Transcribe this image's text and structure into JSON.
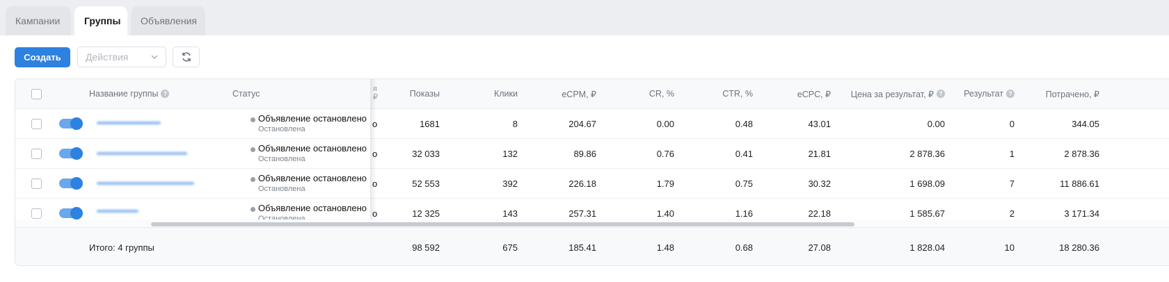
{
  "tabs": [
    {
      "label": "Кампании",
      "active": false
    },
    {
      "label": "Группы",
      "active": true
    },
    {
      "label": "Объявления",
      "active": false
    }
  ],
  "toolbar": {
    "create_label": "Создать",
    "actions_placeholder": "Действия"
  },
  "table": {
    "headers": {
      "name": "Название группы",
      "status": "Статус",
      "peek": "я\n₽",
      "impressions": "Показы",
      "clicks": "Клики",
      "ecpm": "eCPM, ₽",
      "cr": "CR, %",
      "ctr": "CTR, %",
      "ecpc": "eCPC, ₽",
      "cost_per_result": "Цена за результат, ₽",
      "result": "Результат",
      "spent": "Потрачено, ₽"
    },
    "rows": [
      {
        "status": "Объявление остановлено",
        "substatus": "Остановлена",
        "peek": "о",
        "impressions": "1681",
        "clicks": "8",
        "ecpm": "204.67",
        "cr": "0.00",
        "ctr": "0.48",
        "ecpc": "43.01",
        "cost_per_result": "0.00",
        "result": "0",
        "spent": "344.05"
      },
      {
        "status": "Объявление остановлено",
        "substatus": "Остановлена",
        "peek": "о",
        "impressions": "32 033",
        "clicks": "132",
        "ecpm": "89.86",
        "cr": "0.76",
        "ctr": "0.41",
        "ecpc": "21.81",
        "cost_per_result": "2 878.36",
        "result": "1",
        "spent": "2 878.36"
      },
      {
        "status": "Объявление остановлено",
        "substatus": "Остановлена",
        "peek": "о",
        "impressions": "52 553",
        "clicks": "392",
        "ecpm": "226.18",
        "cr": "1.79",
        "ctr": "0.75",
        "ecpc": "30.32",
        "cost_per_result": "1 698.09",
        "result": "7",
        "spent": "11 886.61"
      },
      {
        "status": "Объявление остановлено",
        "substatus": "Остановлена",
        "peek": "о",
        "impressions": "12 325",
        "clicks": "143",
        "ecpm": "257.31",
        "cr": "1.40",
        "ctr": "1.16",
        "ecpc": "22.18",
        "cost_per_result": "1 585.67",
        "result": "2",
        "spent": "3 171.34"
      }
    ],
    "total": {
      "label": "Итого: 4 группы",
      "impressions": "98 592",
      "clicks": "675",
      "ecpm": "185.41",
      "cr": "1.48",
      "ctr": "0.68",
      "ecpc": "27.08",
      "cost_per_result": "1 828.04",
      "result": "10",
      "spent": "18 280.36"
    }
  },
  "colors": {
    "accent": "#2d81e0",
    "page_bg": "#eceef1"
  }
}
